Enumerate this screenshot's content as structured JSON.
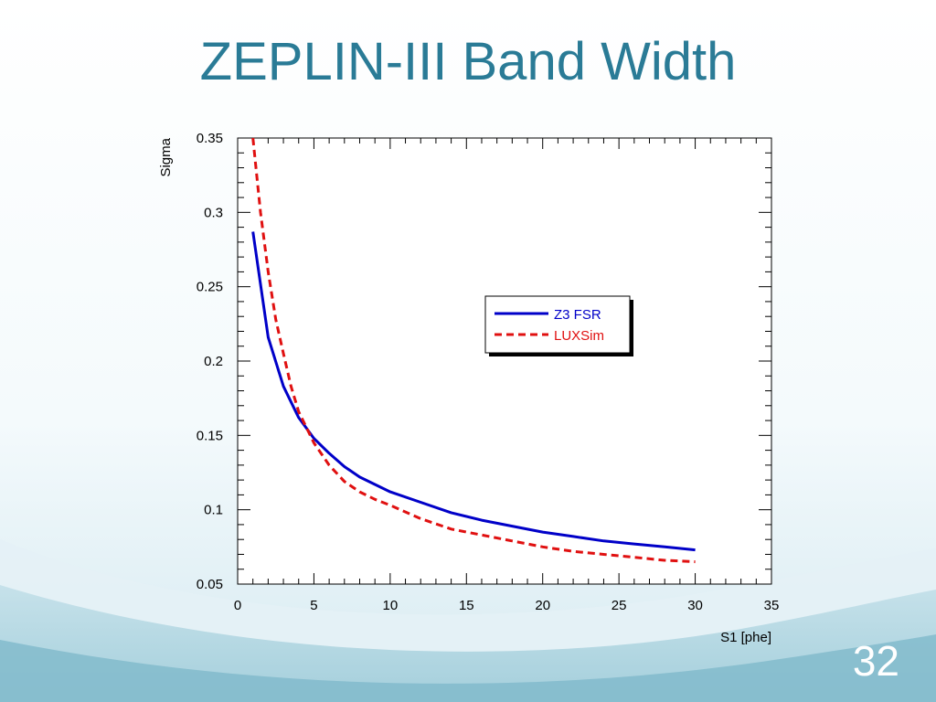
{
  "slide": {
    "title": "ZEPLIN-III Band Width",
    "page_number": "32"
  },
  "colors": {
    "title": "#2a7b96",
    "series_z3fsr": "#0000c8",
    "series_luxsim": "#e01010",
    "background_wave": "#cfe6ee"
  },
  "chart_data": {
    "type": "line",
    "xlabel": "S1 [phe]",
    "ylabel": "Sigma",
    "xlim": [
      0,
      35
    ],
    "ylim": [
      0.05,
      0.35
    ],
    "xticks": [
      "0",
      "5",
      "10",
      "15",
      "20",
      "25",
      "30",
      "35"
    ],
    "yticks": [
      "0.05",
      "0.1",
      "0.15",
      "0.2",
      "0.25",
      "0.3",
      "0.35"
    ],
    "legend_position": "top-right",
    "series": [
      {
        "name": "Z3 FSR",
        "style": "solid",
        "x": [
          1,
          2,
          3,
          4,
          5,
          6,
          7,
          8,
          9,
          10,
          12,
          14,
          16,
          18,
          20,
          22,
          24,
          26,
          28,
          30
        ],
        "y": [
          0.287,
          0.216,
          0.183,
          0.162,
          0.148,
          0.138,
          0.129,
          0.122,
          0.117,
          0.112,
          0.105,
          0.098,
          0.093,
          0.089,
          0.085,
          0.082,
          0.079,
          0.077,
          0.075,
          0.073
        ]
      },
      {
        "name": "LUXSim",
        "style": "dashed",
        "x": [
          1,
          1.5,
          2,
          2.5,
          3,
          3.5,
          4,
          5,
          6,
          7,
          8,
          9,
          10,
          12,
          14,
          16,
          18,
          20,
          22,
          24,
          26,
          28,
          30
        ],
        "y": [
          0.35,
          0.3,
          0.26,
          0.228,
          0.205,
          0.183,
          0.166,
          0.145,
          0.13,
          0.119,
          0.112,
          0.107,
          0.103,
          0.094,
          0.087,
          0.083,
          0.079,
          0.075,
          0.072,
          0.07,
          0.068,
          0.066,
          0.065
        ]
      }
    ]
  }
}
